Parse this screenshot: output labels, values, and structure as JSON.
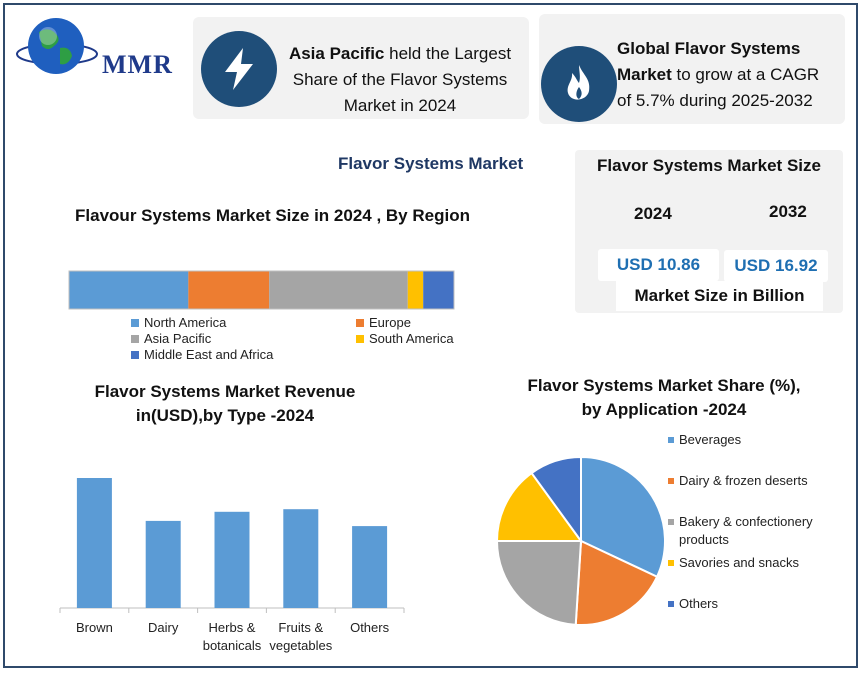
{
  "brand": {
    "name": "MMR"
  },
  "card1": {
    "bold": "Asia Pacific",
    "rest_line1": " held the Largest",
    "line2": "Share of the Flavor Systems",
    "line3": "Market in 2024"
  },
  "card2": {
    "bold_line1": "Global Flavor Systems",
    "bold_line2": "Market",
    "rest_line2": " to grow at a CAGR",
    "line3": "of 5.7% during 2025-2032"
  },
  "main_title": "Flavor Systems Market",
  "market_size": {
    "title": "Flavor Systems Market Size",
    "year1": "2024",
    "year2": "2032",
    "value1": "USD 10.86",
    "value2": "USD 16.92",
    "unit": "Market Size in Billion"
  },
  "region_chart": {
    "title": "Flavour Systems Market Size in 2024 , By Region",
    "chart_data": {
      "type": "bar",
      "orientation": "horizontal-stacked",
      "series": [
        {
          "name": "North America",
          "value": 31,
          "color": "#5b9bd5"
        },
        {
          "name": "Europe",
          "value": 21,
          "color": "#ed7d31"
        },
        {
          "name": "Asia Pacific",
          "value": 36,
          "color": "#a5a5a5"
        },
        {
          "name": "South America",
          "value": 4,
          "color": "#ffc000"
        },
        {
          "name": "Middle East and Africa",
          "value": 8,
          "color": "#4472c4"
        }
      ]
    }
  },
  "type_chart": {
    "title_line1": "Flavor Systems Market Revenue",
    "title_line2": "in(USD),by Type -2024",
    "chart_data": {
      "type": "bar",
      "categories": [
        [
          "Brown"
        ],
        [
          "Dairy"
        ],
        [
          "Herbs &",
          "botanicals"
        ],
        [
          "Fruits &",
          "vegetables"
        ],
        [
          "Others"
        ]
      ],
      "values": [
        100,
        67,
        74,
        76,
        63
      ],
      "color": "#5b9bd5",
      "ylim": [
        0,
        100
      ]
    }
  },
  "app_chart": {
    "title_line1": "Flavor Systems Market Share (%),",
    "title_line2": "by Application -2024",
    "chart_data": {
      "type": "pie",
      "slices": [
        {
          "name": "Beverages",
          "value": 32,
          "color": "#5b9bd5"
        },
        {
          "name": "Dairy & frozen deserts",
          "value": 19,
          "color": "#ed7d31"
        },
        {
          "name": "Bakery & confectionery products",
          "value": 24,
          "color": "#a5a5a5"
        },
        {
          "name": "Savories and snacks",
          "value": 15,
          "color": "#ffc000"
        },
        {
          "name": "Others",
          "value": 10,
          "color": "#4472c4"
        }
      ]
    }
  }
}
